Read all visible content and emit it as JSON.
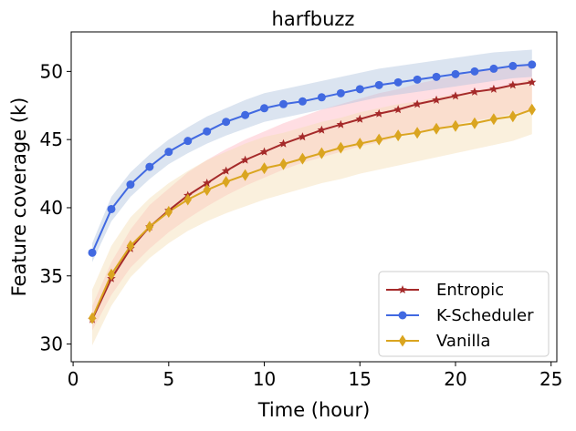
{
  "chart_data": {
    "type": "line",
    "title": "harfbuzz",
    "xlabel": "Time (hour)",
    "ylabel": "Feature coverage (k)",
    "xlim": [
      -0.1,
      25.3
    ],
    "ylim": [
      28.7,
      52.9
    ],
    "xticks": [
      0,
      5,
      10,
      15,
      20,
      25
    ],
    "yticks": [
      30,
      35,
      40,
      45,
      50
    ],
    "grid": false,
    "legend_position": "lower-right",
    "x": [
      1,
      2,
      3,
      4,
      5,
      6,
      7,
      8,
      9,
      10,
      11,
      12,
      13,
      14,
      15,
      16,
      17,
      18,
      19,
      20,
      21,
      22,
      23,
      24
    ],
    "series": [
      {
        "name": "Entropic",
        "color": "#a52a2a",
        "band_color": "#ffb6c1",
        "marker": "star",
        "values": [
          31.8,
          34.8,
          37.0,
          38.6,
          39.8,
          40.9,
          41.8,
          42.7,
          43.5,
          44.1,
          44.7,
          45.2,
          45.7,
          46.1,
          46.5,
          46.9,
          47.2,
          47.6,
          47.9,
          48.2,
          48.5,
          48.7,
          49.0,
          49.2
        ],
        "lower": [
          31.0,
          33.6,
          35.6,
          37.0,
          38.2,
          39.2,
          40.1,
          40.9,
          41.6,
          42.2,
          42.8,
          43.3,
          43.7,
          44.1,
          44.5,
          44.8,
          45.2,
          45.5,
          45.8,
          46.1,
          46.4,
          46.6,
          46.9,
          47.1
        ],
        "upper": [
          32.8,
          36.0,
          38.4,
          40.2,
          41.4,
          42.6,
          43.5,
          44.3,
          45.0,
          45.6,
          46.2,
          46.7,
          47.2,
          47.6,
          48.0,
          48.4,
          48.7,
          49.1,
          49.4,
          49.7,
          49.9,
          50.2,
          50.4,
          50.6
        ]
      },
      {
        "name": "K-Scheduler",
        "color": "#4169e1",
        "band_color": "#b0c4de",
        "marker": "circle",
        "values": [
          36.7,
          39.9,
          41.7,
          43.0,
          44.1,
          44.9,
          45.6,
          46.3,
          46.8,
          47.3,
          47.6,
          47.8,
          48.1,
          48.4,
          48.7,
          49.0,
          49.2,
          49.4,
          49.6,
          49.8,
          50.0,
          50.2,
          50.4,
          50.5
        ],
        "lower": [
          36.0,
          39.0,
          40.8,
          42.1,
          43.2,
          44.0,
          44.7,
          45.3,
          45.8,
          46.3,
          46.6,
          46.9,
          47.2,
          47.5,
          47.8,
          48.1,
          48.3,
          48.5,
          48.7,
          48.9,
          49.1,
          49.3,
          49.5,
          49.6
        ],
        "upper": [
          37.4,
          40.8,
          42.6,
          43.9,
          45.0,
          45.9,
          46.7,
          47.3,
          47.9,
          48.4,
          48.7,
          49.0,
          49.3,
          49.6,
          49.9,
          50.2,
          50.4,
          50.6,
          50.8,
          51.0,
          51.2,
          51.4,
          51.5,
          51.6
        ]
      },
      {
        "name": "Vanilla",
        "color": "#daa520",
        "band_color": "#f5deb3",
        "marker": "diamond",
        "values": [
          31.9,
          35.1,
          37.2,
          38.6,
          39.7,
          40.6,
          41.3,
          41.9,
          42.4,
          42.9,
          43.2,
          43.6,
          44.0,
          44.4,
          44.7,
          45.0,
          45.3,
          45.5,
          45.8,
          46.0,
          46.2,
          46.5,
          46.7,
          47.2
        ],
        "lower": [
          29.9,
          32.8,
          34.9,
          36.3,
          37.4,
          38.3,
          39.0,
          39.6,
          40.1,
          40.6,
          41.0,
          41.4,
          41.8,
          42.1,
          42.5,
          42.8,
          43.1,
          43.4,
          43.7,
          44.0,
          44.3,
          44.6,
          44.9,
          45.4
        ],
        "upper": [
          34.0,
          37.2,
          39.3,
          40.7,
          41.8,
          42.7,
          43.5,
          44.1,
          44.7,
          45.2,
          45.5,
          45.9,
          46.3,
          46.6,
          47.0,
          47.3,
          47.6,
          47.8,
          48.1,
          48.3,
          48.6,
          48.8,
          49.0,
          49.5
        ]
      }
    ]
  }
}
